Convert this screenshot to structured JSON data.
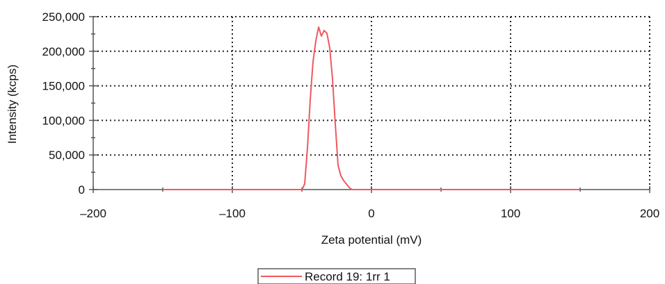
{
  "chart_data": {
    "type": "line",
    "xlabel": "Zeta potential (mV)",
    "ylabel": "Intensity (kcps)",
    "xlim": [
      -200,
      200
    ],
    "ylim": [
      0,
      250000
    ],
    "x_ticks": [
      -200,
      -100,
      0,
      100,
      200
    ],
    "x_tick_labels": [
      "–200",
      "–100",
      "0",
      "100",
      "200"
    ],
    "y_ticks": [
      0,
      50000,
      100000,
      150000,
      200000,
      250000
    ],
    "y_tick_labels": [
      "0",
      "50,000",
      "100,000",
      "150,000",
      "200,000",
      "250,000"
    ],
    "grid": true,
    "legend_position": "bottom-center",
    "series": [
      {
        "name": "Record 19: 1rr 1",
        "color": "#f0585f",
        "x": [
          -150,
          -50,
          -48,
          -46,
          -44,
          -42,
          -40,
          -38,
          -36,
          -34,
          -32,
          -30,
          -28,
          -26,
          -24,
          -22,
          -20,
          -18,
          -16,
          -14,
          -12,
          -10,
          -8,
          -6,
          -4,
          150
        ],
        "y": [
          0,
          0,
          8000,
          60000,
          130000,
          185000,
          215000,
          235000,
          222000,
          230000,
          226000,
          205000,
          160000,
          95000,
          35000,
          20000,
          13000,
          8000,
          3000,
          0,
          0,
          0,
          0,
          0,
          0,
          0
        ]
      }
    ]
  }
}
